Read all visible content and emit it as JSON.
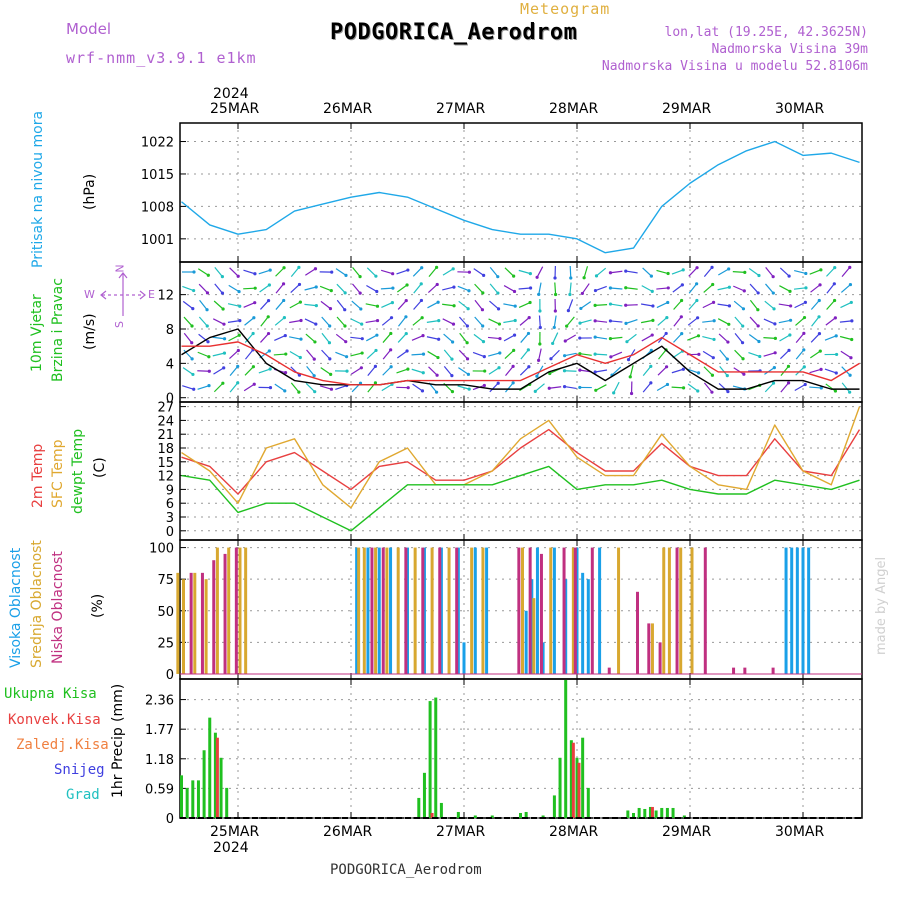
{
  "header": {
    "model_label": "Model",
    "model_name": "wrf-nmm_v3.9.1  e1km",
    "meteogram_label": "Meteogram",
    "station": "PODGORICA_Aerodrom",
    "lonlat": "lon,lat (19.25E, 42.3625N)",
    "altitude": "Nadmorska Visina 39m",
    "model_altitude": "Nadmorska Visina u modelu 52.8106m",
    "footer_station": "PODGORICA_Aerodrom",
    "credit": "made by Angel",
    "colors": {
      "model": "#b060d0",
      "meteogram": "#e0b040",
      "station": "#000000"
    }
  },
  "time_axis": {
    "year": "2024",
    "day_labels": [
      "25MAR",
      "26MAR",
      "27MAR",
      "28MAR",
      "29MAR",
      "30MAR"
    ]
  },
  "chart_data": [
    {
      "type": "line",
      "id": "pressure",
      "ylabel_title": "Pritisak na nivou mora",
      "ylabel_unit": "(hPa)",
      "yticks": [
        "1001",
        "1008",
        "1015",
        "1022"
      ],
      "ylim": [
        996,
        1026
      ],
      "grid": true,
      "x_days": [
        0,
        0.25,
        0.5,
        0.75,
        1.0,
        1.25,
        1.5,
        1.75,
        2.0,
        2.25,
        2.5,
        2.75,
        3.0,
        3.25,
        3.5,
        3.75,
        4.0,
        4.25,
        4.5,
        4.75,
        5.0,
        5.25,
        5.5,
        5.75,
        6.0
      ],
      "series": [
        {
          "color": "#1fa8e8",
          "values": [
            1009,
            1004,
            1002,
            1003,
            1007,
            1008.5,
            1010,
            1011,
            1010,
            1007.5,
            1005,
            1003,
            1002,
            1002,
            1001,
            998,
            999,
            1008,
            1013,
            1017,
            1020,
            1022,
            1019,
            1019.5,
            1017.5
          ]
        }
      ]
    },
    {
      "type": "line",
      "id": "wind",
      "ylabel_title": "10m Vjetar",
      "ylabel_title2": "Brzina i Pravac",
      "ylabel_unit": "(m/s)",
      "yticks": [
        "0",
        "4",
        "8",
        "12"
      ],
      "ylim": [
        -0.5,
        15.8
      ],
      "grid": true,
      "compass": {
        "north": "N",
        "west": "W",
        "east": "E",
        "south": "S"
      },
      "x_days": [
        0,
        0.25,
        0.5,
        0.75,
        1.0,
        1.25,
        1.5,
        1.75,
        2.0,
        2.25,
        2.5,
        2.75,
        3.0,
        3.25,
        3.5,
        3.75,
        4.0,
        4.25,
        4.5,
        4.75,
        5.0,
        5.25,
        5.5,
        5.75,
        6.0
      ],
      "series": [
        {
          "name": "speed",
          "color": "#000000",
          "values": [
            5,
            7,
            8,
            4,
            2,
            1.5,
            1.5,
            1.5,
            2,
            1.5,
            1.5,
            1,
            1,
            3,
            4,
            2,
            4,
            6,
            3,
            1,
            1,
            2,
            2,
            1,
            1
          ]
        },
        {
          "name": "gust",
          "color": "#e83030",
          "values": [
            6,
            6,
            6.5,
            5,
            3,
            2,
            1.5,
            1.5,
            2,
            2,
            2,
            2,
            2,
            3.5,
            5,
            4,
            5,
            7,
            5,
            3,
            3,
            3,
            3,
            2,
            4
          ]
        }
      ]
    },
    {
      "type": "line",
      "id": "temperature",
      "ylabel_title": "2m Temp",
      "ylabel_title2": "SFC Temp",
      "ylabel_title3": "dewpt Temp",
      "ylabel_unit": "(C)",
      "yticks": [
        "0",
        "3",
        "6",
        "9",
        "12",
        "15",
        "18",
        "21",
        "24",
        "27"
      ],
      "ylim": [
        -2,
        28
      ],
      "grid": true,
      "x_days": [
        0,
        0.25,
        0.5,
        0.75,
        1.0,
        1.25,
        1.5,
        1.75,
        2.0,
        2.25,
        2.5,
        2.75,
        3.0,
        3.25,
        3.5,
        3.75,
        4.0,
        4.25,
        4.5,
        4.75,
        5.0,
        5.25,
        5.5,
        5.75,
        6.0
      ],
      "series": [
        {
          "name": "2m Temp",
          "color": "#e84040",
          "values": [
            16,
            14,
            8,
            15,
            17,
            13,
            9,
            14,
            15,
            11,
            11,
            13,
            18,
            22,
            17,
            13,
            13,
            19,
            14,
            12,
            12,
            20,
            13,
            12,
            22
          ]
        },
        {
          "name": "SFC Temp",
          "color": "#e0a830",
          "values": [
            17,
            13,
            6,
            18,
            20,
            10,
            5,
            15,
            18,
            10,
            10,
            13,
            20,
            24,
            16,
            12,
            12,
            21,
            14,
            10,
            9,
            23,
            13,
            10,
            27
          ]
        },
        {
          "name": "dewpt Temp",
          "color": "#20c020",
          "values": [
            12,
            11,
            4,
            6,
            6,
            3,
            0,
            5,
            10,
            10,
            10,
            10,
            12,
            14,
            9,
            10,
            10,
            11,
            9,
            8,
            8,
            11,
            10,
            9,
            11
          ]
        }
      ]
    },
    {
      "type": "bar",
      "id": "clouds",
      "ylabel_title": "Visoka Oblacnost",
      "ylabel_title2": "Srednja Oblacnost",
      "ylabel_title3": "Niska Oblacnost",
      "ylabel_unit": "(%)",
      "yticks": [
        "0",
        "25",
        "50",
        "75",
        "100"
      ],
      "ylim": [
        -4,
        106
      ],
      "grid": true,
      "series": [
        {
          "name": "Visoka Oblacnost",
          "color": "#1aa0e8",
          "bars": [
            [
              1.55,
              100
            ],
            [
              1.65,
              100
            ],
            [
              1.75,
              100
            ],
            [
              1.85,
              100
            ],
            [
              2.0,
              100
            ],
            [
              2.15,
              100
            ],
            [
              2.3,
              100
            ],
            [
              2.45,
              100
            ],
            [
              2.5,
              25
            ],
            [
              2.6,
              100
            ],
            [
              2.7,
              100
            ],
            [
              3.05,
              50
            ],
            [
              3.1,
              75
            ],
            [
              3.15,
              100
            ],
            [
              3.2,
              25
            ],
            [
              3.3,
              100
            ],
            [
              3.4,
              75
            ],
            [
              3.5,
              100
            ],
            [
              3.55,
              80
            ],
            [
              3.6,
              75
            ],
            [
              3.7,
              100
            ],
            [
              5.35,
              100
            ],
            [
              5.4,
              100
            ],
            [
              5.45,
              100
            ],
            [
              5.5,
              100
            ],
            [
              5.55,
              100
            ]
          ]
        },
        {
          "name": "Srednja Oblacnost",
          "color": "#d8a830",
          "bars": [
            [
              -0.05,
              80
            ],
            [
              0.0,
              75
            ],
            [
              0.1,
              80
            ],
            [
              0.2,
              75
            ],
            [
              0.3,
              100
            ],
            [
              0.4,
              100
            ],
            [
              0.5,
              100
            ],
            [
              0.55,
              100
            ],
            [
              1.55,
              100
            ],
            [
              1.6,
              100
            ],
            [
              1.7,
              100
            ],
            [
              1.8,
              100
            ],
            [
              1.9,
              100
            ],
            [
              2.05,
              100
            ],
            [
              2.2,
              100
            ],
            [
              2.35,
              100
            ],
            [
              2.55,
              100
            ],
            [
              2.65,
              100
            ],
            [
              3.0,
              100
            ],
            [
              3.1,
              60
            ],
            [
              3.25,
              100
            ],
            [
              3.45,
              100
            ],
            [
              3.85,
              100
            ],
            [
              4.15,
              40
            ],
            [
              4.25,
              100
            ],
            [
              4.3,
              100
            ],
            [
              4.4,
              100
            ],
            [
              4.5,
              100
            ]
          ]
        },
        {
          "name": "Niska Oblacnost",
          "color": "#c03080",
          "bars": [
            [
              0.05,
              80
            ],
            [
              0.15,
              80
            ],
            [
              0.25,
              90
            ],
            [
              0.35,
              95
            ],
            [
              0.45,
              100
            ],
            [
              1.65,
              100
            ],
            [
              1.75,
              100
            ],
            [
              1.95,
              100
            ],
            [
              2.1,
              100
            ],
            [
              2.25,
              100
            ],
            [
              2.4,
              100
            ],
            [
              2.95,
              100
            ],
            [
              3.05,
              100
            ],
            [
              3.15,
              95
            ],
            [
              3.35,
              100
            ],
            [
              3.45,
              100
            ],
            [
              3.6,
              100
            ],
            [
              3.75,
              5
            ],
            [
              4.0,
              65
            ],
            [
              4.1,
              40
            ],
            [
              4.2,
              25
            ],
            [
              4.35,
              100
            ],
            [
              4.6,
              100
            ],
            [
              4.85,
              5
            ],
            [
              4.95,
              5
            ],
            [
              5.2,
              5
            ]
          ]
        }
      ]
    },
    {
      "type": "bar",
      "id": "precip",
      "ylabel_title": "1hr Precip",
      "ylabel_unit": "(mm)",
      "yticks": [
        "0",
        "0.59",
        "1.18",
        "1.77",
        "2.36"
      ],
      "ylim": [
        0,
        2.77
      ],
      "grid": true,
      "legend": [
        {
          "label": "Ukupna Kisa",
          "color": "#20c020"
        },
        {
          "label": "Konvek.Kisa",
          "color": "#e84040"
        },
        {
          "label": "Zaledj.Kisa",
          "color": "#f08040"
        },
        {
          "label": "Snijeg",
          "color": "#4040e0"
        },
        {
          "label": "Grad",
          "color": "#20c0c0"
        }
      ],
      "series": [
        {
          "name": "Ukupna Kisa",
          "color": "#20c020",
          "bars": [
            [
              0.0,
              0.85
            ],
            [
              0.05,
              0.6
            ],
            [
              0.1,
              0.75
            ],
            [
              0.15,
              0.75
            ],
            [
              0.2,
              1.35
            ],
            [
              0.25,
              2.0
            ],
            [
              0.3,
              1.7
            ],
            [
              0.35,
              1.2
            ],
            [
              0.4,
              0.6
            ],
            [
              2.1,
              0.4
            ],
            [
              2.15,
              0.9
            ],
            [
              2.2,
              2.33
            ],
            [
              2.25,
              2.4
            ],
            [
              2.3,
              0.3
            ],
            [
              2.45,
              0.12
            ],
            [
              2.6,
              0.05
            ],
            [
              2.75,
              0.05
            ],
            [
              3.0,
              0.1
            ],
            [
              3.05,
              0.12
            ],
            [
              3.2,
              0.05
            ],
            [
              3.3,
              0.45
            ],
            [
              3.35,
              1.2
            ],
            [
              3.4,
              2.75
            ],
            [
              3.45,
              1.55
            ],
            [
              3.5,
              1.2
            ],
            [
              3.55,
              1.6
            ],
            [
              3.6,
              0.6
            ],
            [
              3.95,
              0.15
            ],
            [
              4.0,
              0.1
            ],
            [
              4.05,
              0.2
            ],
            [
              4.1,
              0.18
            ],
            [
              4.15,
              0.22
            ],
            [
              4.2,
              0.15
            ],
            [
              4.25,
              0.2
            ],
            [
              4.3,
              0.2
            ],
            [
              4.35,
              0.2
            ],
            [
              4.45,
              0.05
            ]
          ]
        },
        {
          "name": "Konvek.Kisa",
          "color": "#e84040",
          "bars": [
            [
              0.3,
              1.6
            ],
            [
              2.2,
              0.1
            ],
            [
              3.45,
              1.5
            ],
            [
              3.5,
              1.1
            ],
            [
              4.15,
              0.22
            ]
          ]
        }
      ]
    }
  ]
}
